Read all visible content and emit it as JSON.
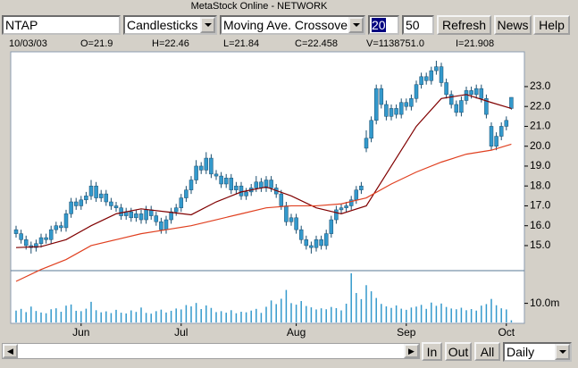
{
  "window_title": "MetaStock Online - NETWORK",
  "toolbar": {
    "symbol": "NTAP",
    "chart_style": "Candlesticks",
    "indicator": "Moving Ave. Crossover",
    "period_1": "20",
    "period_2": "50",
    "buttons": [
      "Refresh",
      "News",
      "Help"
    ]
  },
  "info_bar": [
    "10/03/03",
    "O=21.9",
    "H=22.46",
    "L=21.84",
    "C=22.458",
    "V=1138751.0",
    "I=21.908"
  ],
  "chart_data": {
    "type": "candlestick",
    "color": "#3399cc",
    "categories": [
      null,
      null,
      null,
      null,
      null,
      null,
      null,
      null,
      null,
      null,
      null,
      null,
      null,
      "Jun",
      null,
      null,
      null,
      null,
      null,
      null,
      null,
      null,
      null,
      null,
      null,
      null,
      null,
      null,
      null,
      null,
      null,
      null,
      null,
      "Jul",
      null,
      null,
      null,
      null,
      null,
      null,
      null,
      null,
      null,
      null,
      null,
      null,
      null,
      null,
      null,
      null,
      null,
      null,
      null,
      null,
      null,
      null,
      "Aug",
      null,
      null,
      null,
      null,
      null,
      null,
      null,
      null,
      null,
      null,
      null,
      null,
      null,
      null,
      null,
      null,
      null,
      null,
      null,
      null,
      null,
      "Sep",
      null,
      null,
      null,
      null,
      null,
      null,
      null,
      null,
      null,
      null,
      null,
      null,
      null,
      null,
      null,
      null,
      null,
      null,
      null,
      "Oct",
      null
    ],
    "open": [
      15.8,
      15.6,
      15.3,
      15.0,
      14.9,
      15.1,
      15.4,
      15.3,
      15.8,
      16.0,
      15.9,
      16.6,
      17.2,
      17.0,
      17.3,
      17.5,
      18.0,
      17.4,
      17.6,
      17.2,
      17.0,
      16.9,
      16.5,
      16.7,
      16.4,
      16.6,
      16.3,
      16.8,
      16.5,
      16.2,
      15.8,
      16.3,
      16.7,
      16.9,
      17.4,
      17.8,
      18.3,
      19.0,
      18.8,
      19.4,
      18.6,
      18.5,
      18.1,
      18.4,
      17.8,
      18.0,
      17.5,
      17.7,
      17.9,
      18.2,
      17.9,
      18.3,
      17.9,
      17.6,
      17.0,
      16.2,
      16.4,
      15.8,
      15.3,
      15.0,
      14.9,
      15.3,
      15.0,
      15.6,
      16.3,
      16.8,
      16.9,
      17.0,
      17.3,
      17.8,
      19.9,
      20.4,
      21.3,
      22.9,
      22.1,
      21.5,
      21.9,
      21.6,
      22.2,
      22.0,
      22.4,
      23.1,
      23.5,
      23.3,
      23.8,
      24.0,
      23.2,
      22.6,
      22.1,
      21.7,
      22.3,
      22.8,
      22.6,
      22.9,
      22.4,
      21.0,
      20.0,
      20.5,
      21.0,
      21.9
    ],
    "high": [
      16.0,
      15.8,
      15.5,
      15.2,
      15.3,
      15.6,
      15.6,
      16.0,
      16.2,
      16.2,
      16.8,
      17.4,
      17.4,
      17.5,
      17.7,
      18.3,
      18.2,
      17.8,
      17.8,
      17.4,
      17.2,
      17.1,
      16.9,
      16.9,
      16.8,
      16.8,
      17.0,
      17.0,
      16.7,
      16.4,
      16.5,
      16.9,
      17.1,
      17.6,
      18.0,
      18.5,
      19.3,
      19.2,
      19.7,
      19.6,
      18.8,
      18.7,
      18.6,
      18.6,
      18.2,
      18.2,
      17.9,
      18.1,
      18.5,
      18.4,
      18.5,
      18.5,
      18.1,
      17.8,
      17.2,
      16.6,
      16.6,
      16.0,
      15.5,
      15.2,
      15.5,
      15.5,
      15.8,
      16.5,
      17.0,
      17.1,
      17.2,
      17.5,
      18.0,
      18.2,
      20.8,
      21.5,
      23.1,
      23.1,
      22.3,
      22.1,
      22.1,
      22.4,
      22.4,
      22.6,
      23.3,
      23.7,
      23.7,
      24.0,
      24.3,
      24.2,
      23.4,
      22.8,
      22.3,
      22.5,
      23.0,
      23.0,
      23.1,
      23.1,
      22.6,
      21.2,
      20.7,
      21.2,
      21.5,
      22.46
    ],
    "low": [
      15.4,
      15.1,
      14.8,
      14.6,
      14.7,
      14.9,
      15.1,
      15.1,
      15.6,
      15.7,
      15.7,
      16.4,
      16.8,
      16.8,
      17.1,
      17.3,
      17.2,
      17.2,
      17.0,
      16.8,
      16.7,
      16.3,
      16.3,
      16.2,
      16.2,
      16.1,
      16.1,
      16.3,
      16.0,
      15.6,
      15.6,
      16.1,
      16.5,
      16.7,
      17.2,
      17.6,
      18.1,
      18.6,
      18.6,
      18.4,
      18.3,
      17.9,
      17.9,
      17.6,
      17.6,
      17.3,
      17.3,
      17.5,
      17.7,
      17.7,
      17.7,
      17.7,
      17.4,
      16.8,
      16.0,
      16.0,
      15.6,
      15.1,
      14.8,
      14.6,
      14.7,
      14.8,
      14.8,
      15.4,
      16.1,
      16.6,
      16.7,
      16.8,
      17.1,
      17.6,
      19.7,
      20.2,
      21.1,
      21.9,
      21.3,
      21.3,
      21.4,
      21.4,
      21.8,
      21.8,
      22.2,
      22.9,
      23.1,
      23.1,
      23.6,
      23.0,
      22.4,
      21.9,
      21.5,
      21.5,
      22.1,
      22.4,
      22.4,
      22.2,
      21.4,
      19.8,
      19.8,
      20.3,
      20.8,
      21.84
    ],
    "close": [
      15.6,
      15.3,
      15.0,
      14.9,
      15.1,
      15.4,
      15.3,
      15.8,
      16.0,
      15.9,
      16.6,
      17.2,
      17.0,
      17.3,
      17.5,
      18.0,
      17.4,
      17.6,
      17.2,
      17.0,
      16.9,
      16.5,
      16.7,
      16.4,
      16.6,
      16.3,
      16.8,
      16.5,
      16.2,
      15.8,
      16.3,
      16.7,
      16.9,
      17.4,
      17.8,
      18.3,
      19.0,
      18.8,
      19.4,
      18.6,
      18.5,
      18.1,
      18.4,
      17.8,
      18.0,
      17.5,
      17.7,
      17.9,
      18.2,
      17.9,
      18.3,
      17.9,
      17.6,
      17.0,
      16.2,
      16.4,
      15.8,
      15.3,
      15.0,
      14.9,
      15.3,
      15.0,
      15.6,
      16.3,
      16.8,
      16.9,
      17.0,
      17.3,
      17.8,
      18.0,
      20.4,
      21.3,
      22.9,
      22.1,
      21.5,
      21.9,
      21.6,
      22.2,
      22.0,
      22.4,
      23.1,
      23.5,
      23.3,
      23.8,
      24.0,
      23.2,
      22.6,
      22.1,
      21.7,
      22.3,
      22.8,
      22.6,
      22.9,
      22.4,
      21.6,
      20.0,
      20.5,
      21.0,
      21.3,
      22.458
    ],
    "ylim": [
      13.74,
      24.75
    ],
    "yticks": [
      {
        "value": 15,
        "label": "15.0"
      },
      {
        "value": 16,
        "label": "16.0"
      },
      {
        "value": 17,
        "label": "17.0"
      },
      {
        "value": 18,
        "label": "18.0"
      },
      {
        "value": 19,
        "label": "19.0"
      },
      {
        "value": 20,
        "label": "20.0"
      },
      {
        "value": 21,
        "label": "21.0"
      },
      {
        "value": 22,
        "label": "22.0"
      },
      {
        "value": 23,
        "label": "23.0"
      }
    ],
    "moving_averages": [
      {
        "color": "#800000",
        "x": [
          0,
          5,
          10,
          15,
          20,
          25,
          30,
          35,
          40,
          45,
          50,
          55,
          60,
          65,
          70,
          75,
          80,
          85,
          90,
          95,
          99
        ],
        "values": [
          14.9,
          14.95,
          15.3,
          16.0,
          16.6,
          16.85,
          16.7,
          16.55,
          17.2,
          17.7,
          17.95,
          17.5,
          16.9,
          16.6,
          17.0,
          19.0,
          21.0,
          22.4,
          22.6,
          22.2,
          21.9
        ]
      },
      {
        "color": "#e04020",
        "x": [
          0,
          5,
          10,
          15,
          20,
          25,
          30,
          35,
          40,
          45,
          50,
          55,
          60,
          65,
          70,
          75,
          80,
          85,
          90,
          95,
          99
        ],
        "values": [
          13.2,
          13.8,
          14.3,
          15.0,
          15.3,
          15.6,
          15.8,
          16.0,
          16.3,
          16.6,
          16.9,
          17.0,
          17.0,
          17.1,
          17.4,
          18.1,
          18.7,
          19.2,
          19.6,
          19.8,
          20.1
        ]
      }
    ],
    "volume": {
      "color": "#3399cc",
      "values": [
        6200000,
        7100000,
        5400000,
        8300000,
        6000000,
        5200000,
        4800000,
        6900000,
        7400000,
        5600000,
        8800000,
        9400000,
        6100000,
        5900000,
        7200000,
        10800000,
        6400000,
        5300000,
        5800000,
        4900000,
        6600000,
        5100000,
        4700000,
        6300000,
        5500000,
        7800000,
        5000000,
        4600000,
        5900000,
        6700000,
        5200000,
        6100000,
        7300000,
        6800000,
        9100000,
        8400000,
        10200000,
        7000000,
        8900000,
        7600000,
        5400000,
        5900000,
        5100000,
        6400000,
        4800000,
        5600000,
        5300000,
        6200000,
        7100000,
        5000000,
        8200000,
        11500000,
        9600000,
        12400000,
        17000000,
        10100000,
        9300000,
        11200000,
        8600000,
        7900000,
        6800000,
        7400000,
        6900000,
        8100000,
        7500000,
        6300000,
        9800000,
        25700000,
        15400000,
        12200000,
        19500000,
        16300000,
        12800000,
        9700000,
        8400000,
        7600000,
        8900000,
        7200000,
        6600000,
        7800000,
        8300000,
        9200000,
        7100000,
        10400000,
        8700000,
        9900000,
        8100000,
        7300000,
        6900000,
        7700000,
        6400000,
        7000000,
        6200000,
        8800000,
        9600000,
        12300000,
        9000000,
        7400000,
        6800000,
        1138751
      ],
      "ylim": [
        0,
        27100000
      ],
      "yticks": [
        {
          "value": 10000000,
          "label": "10.0m"
        }
      ]
    }
  },
  "footer": {
    "buttons": [
      "In",
      "Out",
      "All"
    ],
    "interval": "Daily"
  }
}
